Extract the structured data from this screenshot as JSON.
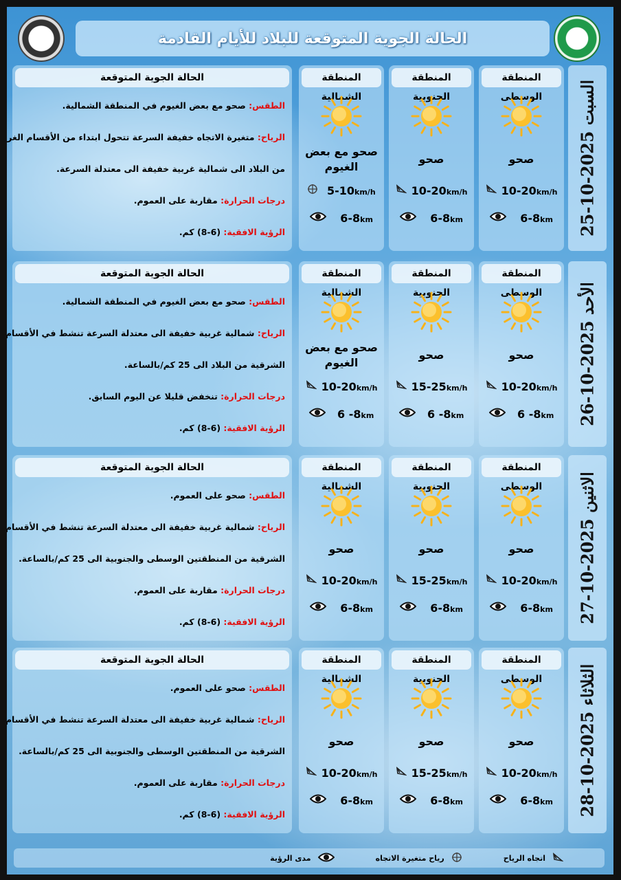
{
  "header": {
    "title": "الحالة الجوية المتوقعة للبلاد للأيام القادمة"
  },
  "colors": {
    "label_red": "#e01010",
    "sky": "#6fb3e2",
    "sun": "#f7b21a"
  },
  "info_title": "الحالة الجوية المتوقعة",
  "keys": {
    "weather": "الطقس:",
    "wind": "الرياح:",
    "temp": "درجات الحرارة:",
    "vis": "الرؤية الافقية:"
  },
  "region_names": [
    "المنطقة الوسطى",
    "المنطقة الجنوبية",
    "المنطقة الشمالية"
  ],
  "days": [
    {
      "label": "السبت 2025-10-25",
      "regions": [
        {
          "cond": "صحو",
          "wind": "10-20",
          "wind_unit": "km/h",
          "wind_icon": "wind-direction-icon",
          "vis": "6-8",
          "vis_unit": "km"
        },
        {
          "cond": "صحو",
          "wind": "10-20",
          "wind_unit": "km/h",
          "wind_icon": "wind-direction-icon",
          "vis": "6-8",
          "vis_unit": "km"
        },
        {
          "cond": "صحو مع بعض الغيوم",
          "wind": "5-10",
          "wind_unit": "km/h",
          "wind_icon": "variable-wind-icon",
          "vis": "6-8",
          "vis_unit": "km"
        }
      ],
      "info": {
        "weather": "صحو مع بعض الغيوم في المنطقة الشمالية.",
        "wind": "متغيرة الاتجاه خفيفة السرعة تتحول ابتداء من الأقسام الغربية",
        "wind2": "من البلاد الى شمالية غربية خفيفة الى معتدلة السرعة.",
        "temp": "مقاربة على العموم.",
        "vis": "(6-8) كم."
      }
    },
    {
      "label": "الأحد 2025-10-26",
      "regions": [
        {
          "cond": "صحو",
          "wind": "10-20",
          "wind_unit": "km/h",
          "wind_icon": "wind-direction-icon",
          "vis": "6 -8",
          "vis_unit": "km"
        },
        {
          "cond": "صحو",
          "wind": "15-25",
          "wind_unit": "km/h",
          "wind_icon": "wind-direction-icon",
          "vis": "6 -8",
          "vis_unit": "km"
        },
        {
          "cond": "صحو مع بعض الغيوم",
          "wind": "10-20",
          "wind_unit": "km/h",
          "wind_icon": "wind-direction-icon",
          "vis": "6 -8",
          "vis_unit": "km"
        }
      ],
      "info": {
        "weather": "صحو مع بعض الغيوم في المنطقة الشمالية.",
        "wind": "شمالية غربية خفيفة الى معتدلة السرعة تنشط في الأقسام",
        "wind2": "الشرقية من البلاد الى 25 كم/بالساعة.",
        "temp": "تنخفض قليلا عن اليوم السابق.",
        "vis": "(6-8) كم."
      }
    },
    {
      "label": "الاثنين 2025-10-27",
      "regions": [
        {
          "cond": "صحو",
          "wind": "10-20",
          "wind_unit": "km/h",
          "wind_icon": "wind-direction-icon",
          "vis": "6-8",
          "vis_unit": "km"
        },
        {
          "cond": "صحو",
          "wind": "15-25",
          "wind_unit": "km/h",
          "wind_icon": "wind-direction-icon",
          "vis": "6-8",
          "vis_unit": "km"
        },
        {
          "cond": "صحو",
          "wind": "10-20",
          "wind_unit": "km/h",
          "wind_icon": "wind-direction-icon",
          "vis": "6-8",
          "vis_unit": "km"
        }
      ],
      "info": {
        "weather": "صحو على العموم.",
        "wind": "شمالية غربية خفيفة الى معتدلة السرعة تنشط في الأقسام",
        "wind2": "الشرقية من المنطقتين الوسطى والجنوبية الى 25 كم/بالساعة.",
        "temp": "مقاربة على العموم.",
        "vis": "(6-8) كم."
      }
    },
    {
      "label": "الثلاثاء 2025-10-28",
      "regions": [
        {
          "cond": "صحو",
          "wind": "10-20",
          "wind_unit": "km/h",
          "wind_icon": "wind-direction-icon",
          "vis": "6-8",
          "vis_unit": "km"
        },
        {
          "cond": "صحو",
          "wind": "15-25",
          "wind_unit": "km/h",
          "wind_icon": "wind-direction-icon",
          "vis": "6-8",
          "vis_unit": "km"
        },
        {
          "cond": "صحو",
          "wind": "10-20",
          "wind_unit": "km/h",
          "wind_icon": "wind-direction-icon",
          "vis": "6-8",
          "vis_unit": "km"
        }
      ],
      "info": {
        "weather": "صحو على العموم.",
        "wind": "شمالية غربية خفيفة الى معتدلة السرعة تنشط في الأقسام",
        "wind2": "الشرقية من المنطقتين الوسطى والجنوبية الى 25 كم/بالساعة.",
        "temp": "مقاربة على العموم.",
        "vis": "(6-8) كم."
      }
    }
  ],
  "legend": {
    "wind_dir": "اتجاه الرياح",
    "variable": "رياح متغيرة الاتجاه",
    "visibility": "مدى الرؤية"
  }
}
